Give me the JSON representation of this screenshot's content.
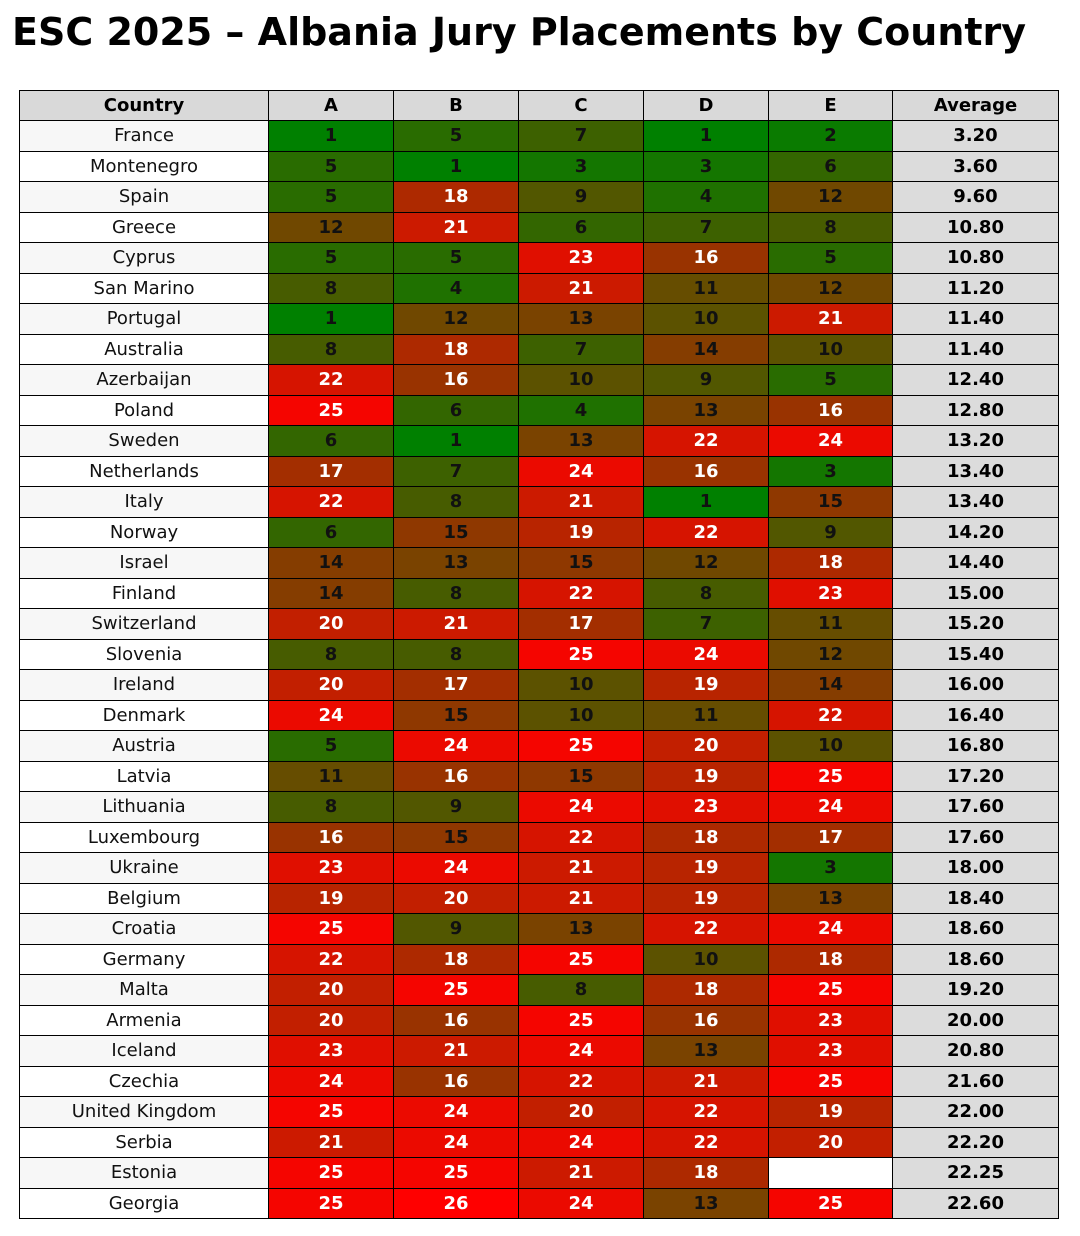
{
  "chart_data": {
    "type": "table",
    "title": "ESC 2025 – Albania Jury Placements by Country",
    "columns": [
      "Country",
      "A",
      "B",
      "C",
      "D",
      "E",
      "Average"
    ],
    "jurors": [
      "A",
      "B",
      "C",
      "D",
      "E"
    ],
    "value_range": [
      1,
      26
    ],
    "color_scale": {
      "low": "#008000",
      "high": "#ff0000",
      "missing": "#ffffff"
    },
    "rows": [
      {
        "country": "France",
        "scores": [
          1,
          5,
          7,
          1,
          2
        ],
        "average": "3.20"
      },
      {
        "country": "Montenegro",
        "scores": [
          5,
          1,
          3,
          3,
          6
        ],
        "average": "3.60"
      },
      {
        "country": "Spain",
        "scores": [
          5,
          18,
          9,
          4,
          12
        ],
        "average": "9.60"
      },
      {
        "country": "Greece",
        "scores": [
          12,
          21,
          6,
          7,
          8
        ],
        "average": "10.80"
      },
      {
        "country": "Cyprus",
        "scores": [
          5,
          5,
          23,
          16,
          5
        ],
        "average": "10.80"
      },
      {
        "country": "San Marino",
        "scores": [
          8,
          4,
          21,
          11,
          12
        ],
        "average": "11.20"
      },
      {
        "country": "Portugal",
        "scores": [
          1,
          12,
          13,
          10,
          21
        ],
        "average": "11.40"
      },
      {
        "country": "Australia",
        "scores": [
          8,
          18,
          7,
          14,
          10
        ],
        "average": "11.40"
      },
      {
        "country": "Azerbaijan",
        "scores": [
          22,
          16,
          10,
          9,
          5
        ],
        "average": "12.40"
      },
      {
        "country": "Poland",
        "scores": [
          25,
          6,
          4,
          13,
          16
        ],
        "average": "12.80"
      },
      {
        "country": "Sweden",
        "scores": [
          6,
          1,
          13,
          22,
          24
        ],
        "average": "13.20"
      },
      {
        "country": "Netherlands",
        "scores": [
          17,
          7,
          24,
          16,
          3
        ],
        "average": "13.40"
      },
      {
        "country": "Italy",
        "scores": [
          22,
          8,
          21,
          1,
          15
        ],
        "average": "13.40"
      },
      {
        "country": "Norway",
        "scores": [
          6,
          15,
          19,
          22,
          9
        ],
        "average": "14.20"
      },
      {
        "country": "Israel",
        "scores": [
          14,
          13,
          15,
          12,
          18
        ],
        "average": "14.40"
      },
      {
        "country": "Finland",
        "scores": [
          14,
          8,
          22,
          8,
          23
        ],
        "average": "15.00"
      },
      {
        "country": "Switzerland",
        "scores": [
          20,
          21,
          17,
          7,
          11
        ],
        "average": "15.20"
      },
      {
        "country": "Slovenia",
        "scores": [
          8,
          8,
          25,
          24,
          12
        ],
        "average": "15.40"
      },
      {
        "country": "Ireland",
        "scores": [
          20,
          17,
          10,
          19,
          14
        ],
        "average": "16.00"
      },
      {
        "country": "Denmark",
        "scores": [
          24,
          15,
          10,
          11,
          22
        ],
        "average": "16.40"
      },
      {
        "country": "Austria",
        "scores": [
          5,
          24,
          25,
          20,
          10
        ],
        "average": "16.80"
      },
      {
        "country": "Latvia",
        "scores": [
          11,
          16,
          15,
          19,
          25
        ],
        "average": "17.20"
      },
      {
        "country": "Lithuania",
        "scores": [
          8,
          9,
          24,
          23,
          24
        ],
        "average": "17.60"
      },
      {
        "country": "Luxembourg",
        "scores": [
          16,
          15,
          22,
          18,
          17
        ],
        "average": "17.60"
      },
      {
        "country": "Ukraine",
        "scores": [
          23,
          24,
          21,
          19,
          3
        ],
        "average": "18.00"
      },
      {
        "country": "Belgium",
        "scores": [
          19,
          20,
          21,
          19,
          13
        ],
        "average": "18.40"
      },
      {
        "country": "Croatia",
        "scores": [
          25,
          9,
          13,
          22,
          24
        ],
        "average": "18.60"
      },
      {
        "country": "Germany",
        "scores": [
          22,
          18,
          25,
          10,
          18
        ],
        "average": "18.60"
      },
      {
        "country": "Malta",
        "scores": [
          20,
          25,
          8,
          18,
          25
        ],
        "average": "19.20"
      },
      {
        "country": "Armenia",
        "scores": [
          20,
          16,
          25,
          16,
          23
        ],
        "average": "20.00"
      },
      {
        "country": "Iceland",
        "scores": [
          23,
          21,
          24,
          13,
          23
        ],
        "average": "20.80"
      },
      {
        "country": "Czechia",
        "scores": [
          24,
          16,
          22,
          21,
          25
        ],
        "average": "21.60"
      },
      {
        "country": "United Kingdom",
        "scores": [
          25,
          24,
          20,
          22,
          19
        ],
        "average": "22.00"
      },
      {
        "country": "Serbia",
        "scores": [
          21,
          24,
          24,
          22,
          20
        ],
        "average": "22.20"
      },
      {
        "country": "Estonia",
        "scores": [
          25,
          25,
          21,
          18,
          null
        ],
        "average": "22.25"
      },
      {
        "country": "Georgia",
        "scores": [
          25,
          26,
          24,
          13,
          25
        ],
        "average": "22.60"
      }
    ]
  }
}
